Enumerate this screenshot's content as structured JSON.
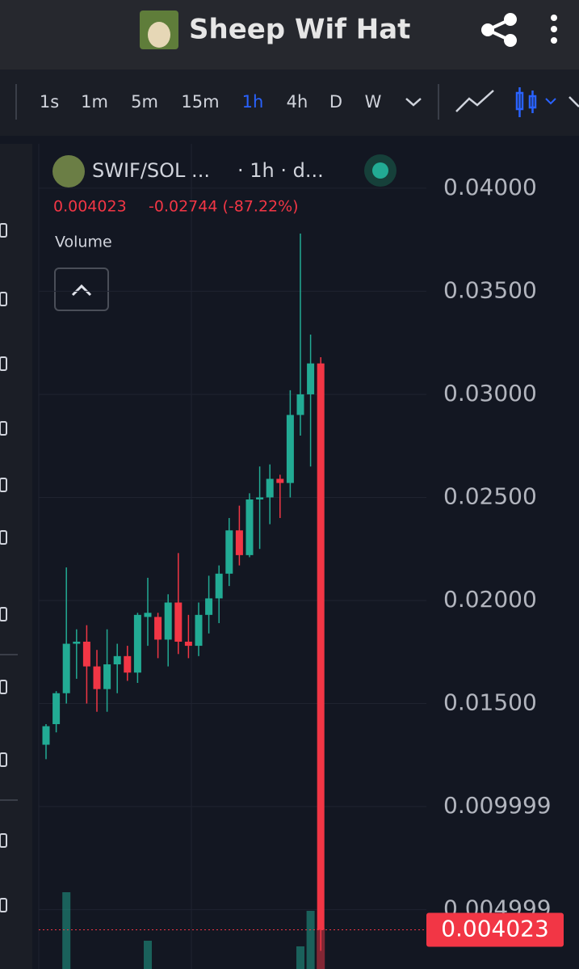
{
  "header": {
    "title": "Sheep Wif Hat"
  },
  "timeframes": [
    "1s",
    "1m",
    "5m",
    "15m",
    "1h",
    "4h",
    "D",
    "W"
  ],
  "active_timeframe_index": 4,
  "chart_data": {
    "type": "candlestick",
    "symbol": "SWIF/SOL ...",
    "interval": "· 1h · d...",
    "change": "-0.02744 (-87.22%)",
    "volume_label": "Volume",
    "last_price": 0.004023,
    "up_color": "#22ab94",
    "down_color": "#f23645",
    "ylim": [
      0.00212,
      0.04227
    ],
    "yticks": [
      {
        "value": 0.04,
        "label": "0.04000"
      },
      {
        "value": 0.035,
        "label": "0.03500"
      },
      {
        "value": 0.03,
        "label": "0.03000"
      },
      {
        "value": 0.025,
        "label": "0.02500"
      },
      {
        "value": 0.02,
        "label": "0.02000"
      },
      {
        "value": 0.015,
        "label": "0.01500"
      },
      0.009999,
      0.004999
    ],
    "open": [
      0.013,
      0.014,
      0.0155,
      0.0179,
      0.018,
      0.0168,
      0.0157,
      0.0169,
      0.0173,
      0.0165,
      0.0192,
      0.0192,
      0.0181,
      0.0199,
      0.018,
      0.0178,
      0.0193,
      0.0201,
      0.0213,
      0.0234,
      0.0222,
      0.0249,
      0.025,
      0.0259,
      0.0257,
      0.029,
      0.03,
      0.0315
    ],
    "high": [
      0.014,
      0.0156,
      0.0216,
      0.0186,
      0.0188,
      0.0176,
      0.0186,
      0.0179,
      0.0178,
      0.0194,
      0.0211,
      0.0194,
      0.0203,
      0.0223,
      0.0193,
      0.0199,
      0.0212,
      0.0217,
      0.024,
      0.0246,
      0.0252,
      0.0265,
      0.0266,
      0.0261,
      0.0302,
      0.0378,
      0.0329,
      0.0318
    ],
    "low": [
      0.0123,
      0.0136,
      0.015,
      0.0162,
      0.015,
      0.0146,
      0.0146,
      0.0155,
      0.0161,
      0.016,
      0.0178,
      0.0172,
      0.0168,
      0.0174,
      0.0172,
      0.0173,
      0.0184,
      0.0189,
      0.0207,
      0.0217,
      0.0221,
      0.0225,
      0.0237,
      0.024,
      0.025,
      0.028,
      0.0265,
      0.003
    ],
    "close": [
      0.0139,
      0.0155,
      0.0179,
      0.018,
      0.0168,
      0.0157,
      0.0169,
      0.0173,
      0.0165,
      0.0193,
      0.0194,
      0.0181,
      0.0199,
      0.018,
      0.0178,
      0.0193,
      0.0201,
      0.0213,
      0.0234,
      0.0222,
      0.0249,
      0.025,
      0.0259,
      0.0257,
      0.029,
      0.03,
      0.0315,
      0.004023
    ],
    "volume": [
      0,
      0,
      95,
      0,
      0,
      0,
      0,
      0,
      0,
      0,
      35,
      0,
      0,
      0,
      0,
      0,
      0,
      0,
      0,
      0,
      0,
      0,
      0,
      0,
      0,
      28,
      72,
      50
    ],
    "volume_lim": [
      0,
      100
    ]
  }
}
